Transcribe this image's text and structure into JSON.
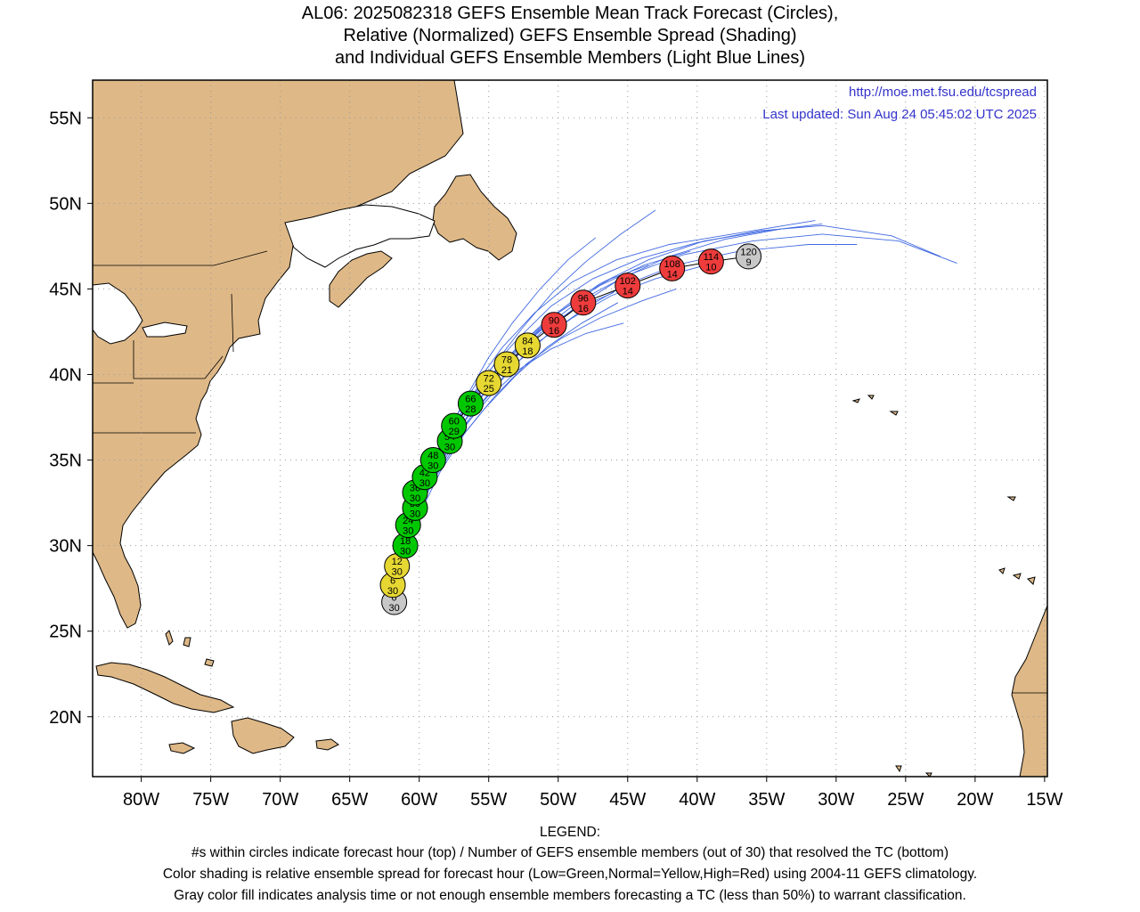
{
  "title": {
    "line1": "AL06: 2025082318 GEFS Ensemble Mean Track Forecast (Circles),",
    "line2": "Relative (Normalized) GEFS Ensemble Spread (Shading)",
    "line3": "and Individual GEFS Ensemble Members (Light Blue Lines)"
  },
  "credit": {
    "url": "http://moe.met.fsu.edu/tcspread",
    "updated": "Last updated: Sun Aug 24 05:45:02 UTC 2025"
  },
  "axes": {
    "lon_ticks": [
      "80W",
      "75W",
      "70W",
      "65W",
      "60W",
      "55W",
      "50W",
      "45W",
      "40W",
      "35W",
      "30W",
      "25W",
      "20W",
      "15W"
    ],
    "lat_ticks": [
      "55N",
      "50N",
      "45N",
      "40N",
      "35N",
      "30N",
      "25N",
      "20N"
    ]
  },
  "legend": {
    "heading": "LEGEND:",
    "line1": "#s within circles indicate forecast hour (top) / Number of GEFS ensemble members (out of 30) that resolved the TC (bottom)",
    "line2": "Color shading is relative ensemble spread for forecast hour (Low=Green,Normal=Yellow,High=Red) using 2004-11 GEFS climatology.",
    "line3": "Gray color fill indicates analysis time or not enough ensemble members forecasting a TC (less than 50%) to warrant classification."
  },
  "colors": {
    "land": "#deb887",
    "members": "#4169e1",
    "credit": "#3333cc",
    "gray": "#c8c8c8",
    "green": "#00c800",
    "yellow": "#e6d732",
    "red": "#ee3c3c"
  },
  "map_data": {
    "lon_range": [
      -83.5,
      -14.8
    ],
    "lat_range": [
      16.5,
      57.2
    ],
    "mean_track": [
      {
        "hour": "0",
        "members": "30",
        "lon": -61.8,
        "lat": 26.7,
        "spread": "gray"
      },
      {
        "hour": "6",
        "members": "30",
        "lon": -61.9,
        "lat": 27.7,
        "spread": "yellow"
      },
      {
        "hour": "12",
        "members": "30",
        "lon": -61.6,
        "lat": 28.8,
        "spread": "yellow"
      },
      {
        "hour": "18",
        "members": "30",
        "lon": -61.0,
        "lat": 30.0,
        "spread": "green"
      },
      {
        "hour": "24",
        "members": "30",
        "lon": -60.8,
        "lat": 31.2,
        "spread": "green"
      },
      {
        "hour": "30",
        "members": "30",
        "lon": -60.3,
        "lat": 32.2,
        "spread": "green"
      },
      {
        "hour": "36",
        "members": "30",
        "lon": -60.3,
        "lat": 33.1,
        "spread": "green"
      },
      {
        "hour": "42",
        "members": "30",
        "lon": -59.6,
        "lat": 34.0,
        "spread": "green"
      },
      {
        "hour": "48",
        "members": "30",
        "lon": -59.0,
        "lat": 35.0,
        "spread": "green"
      },
      {
        "hour": "54",
        "members": "30",
        "lon": -57.8,
        "lat": 36.1,
        "spread": "green"
      },
      {
        "hour": "60",
        "members": "29",
        "lon": -57.5,
        "lat": 37.0,
        "spread": "green"
      },
      {
        "hour": "66",
        "members": "28",
        "lon": -56.3,
        "lat": 38.3,
        "spread": "green"
      },
      {
        "hour": "72",
        "members": "25",
        "lon": -55.0,
        "lat": 39.5,
        "spread": "yellow"
      },
      {
        "hour": "78",
        "members": "21",
        "lon": -53.7,
        "lat": 40.6,
        "spread": "yellow"
      },
      {
        "hour": "84",
        "members": "18",
        "lon": -52.2,
        "lat": 41.7,
        "spread": "yellow"
      },
      {
        "hour": "90",
        "members": "16",
        "lon": -50.3,
        "lat": 42.9,
        "spread": "red"
      },
      {
        "hour": "96",
        "members": "16",
        "lon": -48.2,
        "lat": 44.2,
        "spread": "red"
      },
      {
        "hour": "102",
        "members": "14",
        "lon": -45.0,
        "lat": 45.2,
        "spread": "red"
      },
      {
        "hour": "108",
        "members": "14",
        "lon": -41.8,
        "lat": 46.2,
        "spread": "red"
      },
      {
        "hour": "114",
        "members": "10",
        "lon": -39.0,
        "lat": 46.6,
        "spread": "red"
      },
      {
        "hour": "120",
        "members": "9",
        "lon": -36.3,
        "lat": 46.9,
        "spread": "gray"
      }
    ],
    "member_tracks": [
      [
        [
          -62.0,
          27.0
        ],
        [
          -61.6,
          29.0
        ],
        [
          -60.8,
          31.2
        ],
        [
          -59.8,
          33.5
        ],
        [
          -58.3,
          35.8
        ],
        [
          -56.8,
          38.0
        ],
        [
          -55.2,
          40.0
        ],
        [
          -53.0,
          42.0
        ],
        [
          -50.5,
          44.0
        ],
        [
          -47.5,
          45.6
        ],
        [
          -44.0,
          46.8
        ],
        [
          -40.0,
          47.7
        ],
        [
          -35.5,
          48.4
        ],
        [
          -31.0,
          48.7
        ],
        [
          -26.0,
          48.1
        ],
        [
          -22.5,
          46.9
        ]
      ],
      [
        [
          -62.0,
          27.0
        ],
        [
          -61.4,
          29.1
        ],
        [
          -60.5,
          31.4
        ],
        [
          -59.4,
          33.7
        ],
        [
          -57.8,
          36.0
        ],
        [
          -56.0,
          38.2
        ],
        [
          -54.0,
          40.4
        ],
        [
          -51.5,
          42.4
        ],
        [
          -48.5,
          44.3
        ],
        [
          -45.0,
          45.8
        ],
        [
          -41.0,
          47.0
        ],
        [
          -36.0,
          47.8
        ],
        [
          -31.0,
          48.2
        ],
        [
          -25.5,
          47.8
        ],
        [
          -21.3,
          46.5
        ]
      ],
      [
        [
          -62.0,
          27.0
        ],
        [
          -61.7,
          29.0
        ],
        [
          -61.0,
          31.0
        ],
        [
          -60.0,
          33.2
        ],
        [
          -58.7,
          35.5
        ],
        [
          -57.3,
          37.6
        ],
        [
          -55.8,
          39.6
        ],
        [
          -54.0,
          41.6
        ],
        [
          -51.7,
          43.6
        ],
        [
          -49.0,
          45.4
        ],
        [
          -45.8,
          46.7
        ],
        [
          -42.0,
          47.6
        ],
        [
          -37.5,
          48.2
        ],
        [
          -33.0,
          48.8
        ],
        [
          -31.5,
          49.0
        ]
      ],
      [
        [
          -62.0,
          27.0
        ],
        [
          -61.3,
          29.2
        ],
        [
          -60.2,
          31.6
        ],
        [
          -58.9,
          34.0
        ],
        [
          -57.2,
          36.4
        ],
        [
          -55.3,
          38.5
        ],
        [
          -53.2,
          40.5
        ],
        [
          -50.8,
          42.3
        ],
        [
          -48.0,
          43.9
        ],
        [
          -45.0,
          45.3
        ],
        [
          -41.5,
          46.4
        ],
        [
          -37.0,
          47.2
        ],
        [
          -32.0,
          47.6
        ],
        [
          -28.5,
          47.6
        ]
      ],
      [
        [
          -62.0,
          27.0
        ],
        [
          -61.5,
          29.0
        ],
        [
          -60.7,
          31.3
        ],
        [
          -59.7,
          33.5
        ],
        [
          -58.2,
          35.7
        ],
        [
          -56.5,
          37.9
        ],
        [
          -54.6,
          39.9
        ],
        [
          -52.5,
          41.8
        ],
        [
          -50.0,
          43.6
        ],
        [
          -47.0,
          45.2
        ],
        [
          -43.8,
          46.4
        ],
        [
          -40.5,
          47.2
        ]
      ],
      [
        [
          -62.0,
          27.0
        ],
        [
          -61.6,
          29.0
        ],
        [
          -60.9,
          31.1
        ],
        [
          -60.0,
          33.3
        ],
        [
          -58.8,
          35.3
        ],
        [
          -57.4,
          37.3
        ],
        [
          -55.6,
          39.3
        ],
        [
          -53.6,
          41.0
        ],
        [
          -51.3,
          42.6
        ],
        [
          -48.8,
          43.8
        ],
        [
          -46.0,
          44.8
        ]
      ],
      [
        [
          -62.0,
          27.0
        ],
        [
          -61.5,
          29.0
        ],
        [
          -60.6,
          31.2
        ],
        [
          -59.5,
          33.3
        ],
        [
          -58.1,
          35.3
        ],
        [
          -56.6,
          37.1
        ],
        [
          -54.8,
          38.8
        ],
        [
          -52.8,
          40.3
        ],
        [
          -50.5,
          41.5
        ],
        [
          -48.0,
          42.4
        ],
        [
          -45.3,
          43.0
        ]
      ],
      [
        [
          -62.0,
          27.0
        ],
        [
          -61.2,
          29.3
        ],
        [
          -60.0,
          31.8
        ],
        [
          -58.5,
          34.3
        ],
        [
          -56.7,
          36.6
        ],
        [
          -54.6,
          38.7
        ],
        [
          -52.3,
          40.6
        ],
        [
          -49.8,
          42.1
        ],
        [
          -47.0,
          43.3
        ],
        [
          -44.0,
          44.3
        ],
        [
          -41.5,
          45.0
        ]
      ],
      [
        [
          -62.0,
          27.0
        ],
        [
          -61.6,
          29.0
        ],
        [
          -60.8,
          31.3
        ],
        [
          -59.6,
          33.7
        ],
        [
          -58.0,
          36.2
        ],
        [
          -56.3,
          38.5
        ],
        [
          -54.6,
          40.6
        ],
        [
          -52.6,
          42.7
        ],
        [
          -50.4,
          44.8
        ],
        [
          -48.0,
          46.6
        ],
        [
          -45.5,
          48.2
        ],
        [
          -43.0,
          49.6
        ]
      ],
      [
        [
          -62.0,
          27.0
        ],
        [
          -61.3,
          29.1
        ],
        [
          -60.4,
          31.5
        ],
        [
          -59.1,
          33.9
        ],
        [
          -57.5,
          36.3
        ],
        [
          -55.7,
          38.5
        ],
        [
          -53.7,
          40.5
        ],
        [
          -51.3,
          42.4
        ],
        [
          -48.6,
          44.0
        ],
        [
          -45.5,
          45.6
        ],
        [
          -42.0,
          46.9
        ],
        [
          -38.0,
          47.9
        ],
        [
          -34.0,
          48.5
        ]
      ],
      [
        [
          -62.0,
          27.0
        ],
        [
          -61.4,
          29.1
        ],
        [
          -60.6,
          31.2
        ],
        [
          -59.6,
          33.4
        ],
        [
          -58.4,
          35.5
        ],
        [
          -57.0,
          37.5
        ],
        [
          -55.3,
          39.4
        ],
        [
          -53.4,
          41.2
        ],
        [
          -51.2,
          42.9
        ],
        [
          -48.8,
          44.4
        ],
        [
          -46.2,
          45.6
        ],
        [
          -43.5,
          46.4
        ]
      ],
      [
        [
          -62.0,
          27.0
        ],
        [
          -61.7,
          29.0
        ],
        [
          -61.1,
          31.0
        ],
        [
          -60.2,
          33.0
        ],
        [
          -59.0,
          35.0
        ],
        [
          -57.7,
          37.0
        ],
        [
          -56.4,
          39.0
        ],
        [
          -55.0,
          41.0
        ],
        [
          -53.3,
          43.0
        ],
        [
          -51.3,
          45.0
        ],
        [
          -49.3,
          46.7
        ],
        [
          -47.3,
          48.0
        ]
      ],
      [
        [
          -62.0,
          27.0
        ],
        [
          -61.5,
          29.0
        ],
        [
          -60.6,
          31.3
        ],
        [
          -59.3,
          33.7
        ],
        [
          -57.6,
          36.0
        ],
        [
          -55.8,
          38.1
        ],
        [
          -53.8,
          40.0
        ],
        [
          -51.6,
          41.8
        ],
        [
          -49.0,
          43.3
        ],
        [
          -46.2,
          44.6
        ],
        [
          -43.0,
          45.6
        ],
        [
          -39.8,
          46.3
        ]
      ],
      [
        [
          -62.0,
          27.0
        ],
        [
          -61.4,
          29.1
        ],
        [
          -60.4,
          31.4
        ],
        [
          -59.0,
          33.8
        ],
        [
          -57.3,
          36.0
        ],
        [
          -55.3,
          38.0
        ],
        [
          -53.1,
          39.9
        ],
        [
          -50.8,
          41.6
        ],
        [
          -48.3,
          43.0
        ],
        [
          -45.7,
          44.2
        ]
      ],
      [
        [
          -62.0,
          27.0
        ],
        [
          -61.6,
          29.0
        ],
        [
          -60.9,
          31.2
        ],
        [
          -59.9,
          33.4
        ],
        [
          -58.6,
          35.6
        ],
        [
          -57.0,
          37.7
        ],
        [
          -55.0,
          39.8
        ],
        [
          -52.7,
          41.8
        ],
        [
          -50.0,
          43.6
        ],
        [
          -47.0,
          45.3
        ],
        [
          -43.5,
          46.7
        ],
        [
          -39.5,
          47.8
        ],
        [
          -35.0,
          48.4
        ],
        [
          -31.0,
          48.8
        ]
      ]
    ]
  }
}
